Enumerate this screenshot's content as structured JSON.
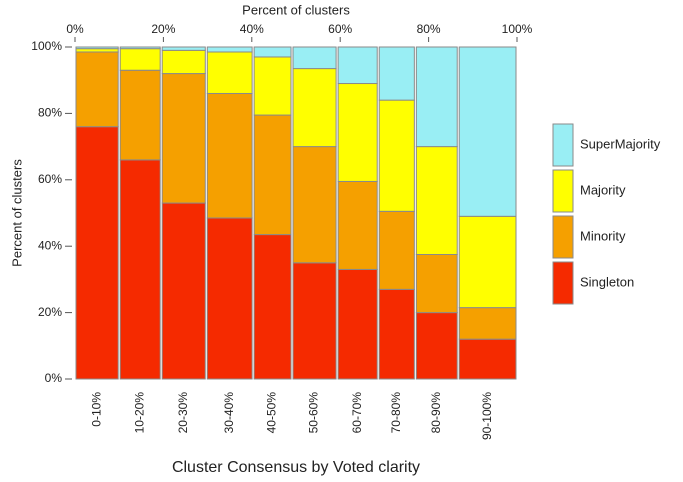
{
  "chart_data": {
    "type": "mekko",
    "title_top": "Percent of clusters",
    "y_label": "Percent of clusters",
    "x_label": "Cluster Consensus by Voted clarity",
    "categories": [
      "0-10%",
      "10-20%",
      "20-30%",
      "30-40%",
      "40-50%",
      "50-60%",
      "60-70%",
      "70-80%",
      "80-90%",
      "90-100%"
    ],
    "widths": [
      10.0,
      9.5,
      10.2,
      10.6,
      8.8,
      10.2,
      9.3,
      8.4,
      9.7,
      13.3
    ],
    "series": [
      {
        "name": "Singleton",
        "color": "#f52a00",
        "values": [
          76,
          66,
          53,
          48.5,
          43.5,
          35,
          33,
          27,
          20,
          12
        ]
      },
      {
        "name": "Minority",
        "color": "#f5a000",
        "values": [
          22.5,
          27,
          39,
          37.5,
          36,
          35,
          26.5,
          23.5,
          17.5,
          9.5
        ]
      },
      {
        "name": "Majority",
        "color": "#ffff00",
        "values": [
          1,
          6.5,
          7,
          12.5,
          17.5,
          23.5,
          29.5,
          33.5,
          32.5,
          27.5
        ]
      },
      {
        "name": "SuperMajority",
        "color": "#99eef4",
        "values": [
          0.5,
          0.5,
          1,
          1.5,
          3,
          6.5,
          11,
          16,
          30,
          51
        ]
      }
    ],
    "xlim": [
      0,
      100
    ],
    "xticks": [
      {
        "value": 0,
        "label": "0%"
      },
      {
        "value": 20,
        "label": "20%"
      },
      {
        "value": 40,
        "label": "40%"
      },
      {
        "value": 60,
        "label": "60%"
      },
      {
        "value": 80,
        "label": "80%"
      },
      {
        "value": 100,
        "label": "100%"
      }
    ],
    "ylim": [
      0,
      100
    ],
    "yticks": [
      {
        "value": 0,
        "label": "0%"
      },
      {
        "value": 20,
        "label": "20%"
      },
      {
        "value": 40,
        "label": "40%"
      },
      {
        "value": 60,
        "label": "60%"
      },
      {
        "value": 80,
        "label": "80%"
      },
      {
        "value": 100,
        "label": "100%"
      }
    ]
  }
}
